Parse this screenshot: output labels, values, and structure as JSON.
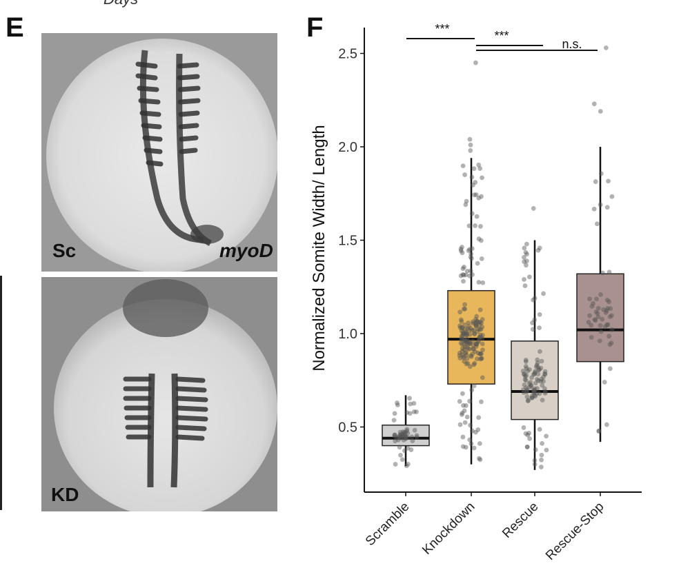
{
  "panel_e": {
    "letter": "E",
    "cut_text": "Days",
    "top_image": {
      "condition": "Sc",
      "gene": "myoD"
    },
    "bottom_image": {
      "condition": "KD"
    }
  },
  "panel_f": {
    "letter": "F"
  },
  "chart_data": {
    "type": "box",
    "ylabel": "Normalized Somite Width/ Length",
    "xlabel": "",
    "ylim": [
      0.22,
      2.6
    ],
    "yticks": [
      0.5,
      1.0,
      1.5,
      2.0,
      2.5
    ],
    "ytick_labels": [
      "0.5",
      "1.0",
      "1.5",
      "2.0",
      "2.5"
    ],
    "categories": [
      "Scramble",
      "Knockdown",
      "Rescue",
      "Rescue-Stop"
    ],
    "colors": [
      "#d0d0d0",
      "#e8b75c",
      "#d8d0c6",
      "#a8918e"
    ],
    "boxes": [
      {
        "name": "Scramble",
        "whisker_low": 0.29,
        "q1": 0.4,
        "median": 0.44,
        "q3": 0.51,
        "whisker_high": 0.67,
        "points_n": 55,
        "outliers": []
      },
      {
        "name": "Knockdown",
        "whisker_low": 0.3,
        "q1": 0.73,
        "median": 0.97,
        "q3": 1.23,
        "whisker_high": 1.94,
        "points_n": 200,
        "outliers": [
          1.98,
          2.01,
          2.04,
          2.45
        ]
      },
      {
        "name": "Rescue",
        "whisker_low": 0.27,
        "q1": 0.54,
        "median": 0.69,
        "q3": 0.96,
        "whisker_high": 1.5,
        "points_n": 110,
        "outliers": [
          1.67
        ]
      },
      {
        "name": "Rescue-Stop",
        "whisker_low": 0.42,
        "q1": 0.85,
        "median": 1.02,
        "q3": 1.32,
        "whisker_high": 2.0,
        "points_n": 50,
        "outliers": [
          2.19,
          2.23,
          2.53
        ]
      }
    ],
    "significance": [
      {
        "from": "Scramble",
        "to": "Knockdown",
        "label": "***",
        "y": 2.58
      },
      {
        "from": "Knockdown",
        "to": "Rescue",
        "label": "***",
        "y": 2.55
      },
      {
        "from": "Knockdown",
        "to": "Rescue-Stop",
        "label": "n.s.",
        "y": 2.52
      }
    ]
  }
}
